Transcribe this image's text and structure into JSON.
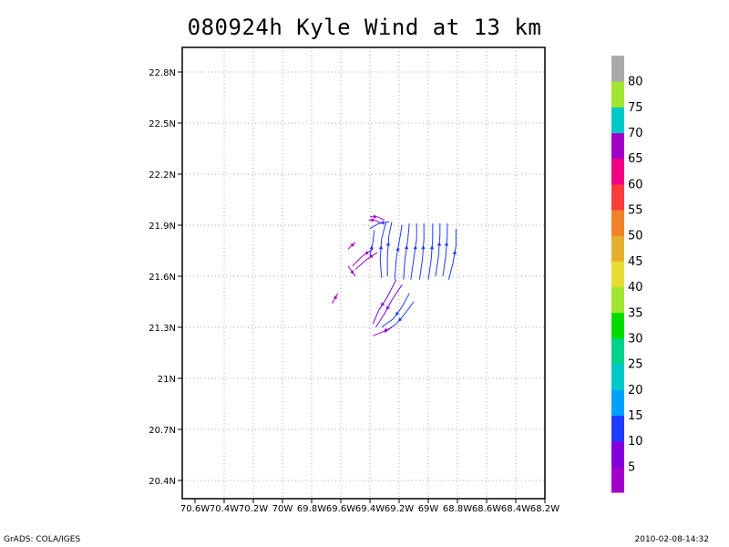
{
  "chart_data": {
    "type": "streamline",
    "title": "080924h Kyle Wind at 13 km",
    "x_ticks": [
      "70.6W",
      "70.4W",
      "70.2W",
      "70W",
      "69.8W",
      "69.6W",
      "69.4W",
      "69.2W",
      "69W",
      "68.8W",
      "68.6W",
      "68.4W",
      "68.2W"
    ],
    "y_ticks": [
      "22.8N",
      "22.5N",
      "22.2N",
      "21.9N",
      "21.6N",
      "21.3N",
      "21N",
      "20.7N",
      "20.4N"
    ],
    "xlim": [
      -70.6,
      -68.2
    ],
    "ylim": [
      20.4,
      22.8
    ],
    "grid": true,
    "colorbar": {
      "levels": [
        "5",
        "10",
        "15",
        "20",
        "25",
        "30",
        "35",
        "40",
        "45",
        "50",
        "55",
        "60",
        "65",
        "70",
        "75",
        "80"
      ],
      "colors": [
        "#a000c8",
        "#8200dc",
        "#1e3cff",
        "#00a0ff",
        "#00c8c8",
        "#00d28c",
        "#00dc00",
        "#a0e632",
        "#e6dc32",
        "#e6af2d",
        "#f08228",
        "#fa3c3c",
        "#f00082",
        "#a000c8",
        "#00c8c8",
        "#a0e632",
        "#aaaaaa"
      ]
    },
    "streamlines": [
      {
        "color": "#1e3cff",
        "points": [
          [
            -69.32,
            21.59
          ],
          [
            -69.33,
            21.7
          ],
          [
            -69.32,
            21.82
          ],
          [
            -69.29,
            21.92
          ]
        ]
      },
      {
        "color": "#1e3cff",
        "points": [
          [
            -69.28,
            21.6
          ],
          [
            -69.28,
            21.72
          ],
          [
            -69.27,
            21.84
          ],
          [
            -69.25,
            21.92
          ]
        ]
      },
      {
        "color": "#1e3cff",
        "points": [
          [
            -69.23,
            21.58
          ],
          [
            -69.22,
            21.7
          ],
          [
            -69.2,
            21.8
          ],
          [
            -69.18,
            21.9
          ]
        ]
      },
      {
        "color": "#1e3cff",
        "points": [
          [
            -69.17,
            21.58
          ],
          [
            -69.16,
            21.7
          ],
          [
            -69.14,
            21.82
          ],
          [
            -69.13,
            21.91
          ]
        ]
      },
      {
        "color": "#1e3cff",
        "points": [
          [
            -69.12,
            21.58
          ],
          [
            -69.1,
            21.7
          ],
          [
            -69.08,
            21.82
          ],
          [
            -69.08,
            21.91
          ]
        ]
      },
      {
        "color": "#1e3cff",
        "points": [
          [
            -69.06,
            21.58
          ],
          [
            -69.04,
            21.7
          ],
          [
            -69.03,
            21.82
          ],
          [
            -69.03,
            21.91
          ]
        ]
      },
      {
        "color": "#1e3cff",
        "points": [
          [
            -69.0,
            21.58
          ],
          [
            -68.98,
            21.7
          ],
          [
            -68.97,
            21.82
          ],
          [
            -68.97,
            21.91
          ]
        ]
      },
      {
        "color": "#1e3cff",
        "points": [
          [
            -68.95,
            21.6
          ],
          [
            -68.93,
            21.72
          ],
          [
            -68.92,
            21.84
          ],
          [
            -68.92,
            21.91
          ]
        ]
      },
      {
        "color": "#1e3cff",
        "points": [
          [
            -68.9,
            21.6
          ],
          [
            -68.88,
            21.72
          ],
          [
            -68.87,
            21.84
          ],
          [
            -68.87,
            21.91
          ]
        ]
      },
      {
        "color": "#1e3cff",
        "points": [
          [
            -68.86,
            21.58
          ],
          [
            -68.83,
            21.68
          ],
          [
            -68.81,
            21.78
          ],
          [
            -68.81,
            21.88
          ]
        ]
      },
      {
        "color": "#1e3cff",
        "points": [
          [
            -69.4,
            21.72
          ],
          [
            -69.38,
            21.8
          ],
          [
            -69.37,
            21.87
          ]
        ]
      },
      {
        "color": "#1e3cff",
        "points": [
          [
            -69.27,
            21.92
          ],
          [
            -69.34,
            21.91
          ],
          [
            -69.4,
            21.88
          ]
        ]
      },
      {
        "color": "#1e3cff",
        "points": [
          [
            -69.13,
            21.5
          ],
          [
            -69.18,
            21.42
          ],
          [
            -69.24,
            21.35
          ],
          [
            -69.32,
            21.3
          ]
        ]
      },
      {
        "color": "#1e3cff",
        "points": [
          [
            -69.1,
            21.45
          ],
          [
            -69.16,
            21.38
          ],
          [
            -69.22,
            21.32
          ],
          [
            -69.3,
            21.27
          ]
        ]
      },
      {
        "color": "#8200dc",
        "points": [
          [
            -69.22,
            21.58
          ],
          [
            -69.28,
            21.48
          ],
          [
            -69.34,
            21.4
          ],
          [
            -69.38,
            21.32
          ]
        ]
      },
      {
        "color": "#8200dc",
        "points": [
          [
            -69.18,
            21.55
          ],
          [
            -69.25,
            21.46
          ],
          [
            -69.3,
            21.38
          ],
          [
            -69.36,
            21.3
          ]
        ]
      },
      {
        "color": "#a000c8",
        "points": [
          [
            -69.25,
            21.3
          ],
          [
            -69.32,
            21.27
          ],
          [
            -69.38,
            21.25
          ]
        ]
      },
      {
        "color": "#a000c8",
        "points": [
          [
            -69.35,
            21.74
          ],
          [
            -69.42,
            21.7
          ],
          [
            -69.5,
            21.64
          ]
        ]
      },
      {
        "color": "#a000c8",
        "points": [
          [
            -69.38,
            21.76
          ],
          [
            -69.45,
            21.72
          ],
          [
            -69.52,
            21.66
          ]
        ]
      },
      {
        "color": "#a000c8",
        "points": [
          [
            -69.4,
            21.95
          ],
          [
            -69.35,
            21.95
          ],
          [
            -69.3,
            21.93
          ]
        ]
      },
      {
        "color": "#a000c8",
        "points": [
          [
            -69.41,
            21.93
          ],
          [
            -69.37,
            21.93
          ],
          [
            -69.32,
            21.91
          ]
        ]
      },
      {
        "color": "#a000c8",
        "points": [
          [
            -69.55,
            21.76
          ],
          [
            -69.5,
            21.8
          ]
        ]
      },
      {
        "color": "#a000c8",
        "points": [
          [
            -69.66,
            21.44
          ],
          [
            -69.62,
            21.5
          ]
        ]
      },
      {
        "color": "#a000c8",
        "points": [
          [
            -69.55,
            21.66
          ],
          [
            -69.5,
            21.6
          ]
        ]
      }
    ]
  },
  "footer": {
    "left": "GrADS: COLA/IGES",
    "right": "2010-02-08-14:32"
  }
}
